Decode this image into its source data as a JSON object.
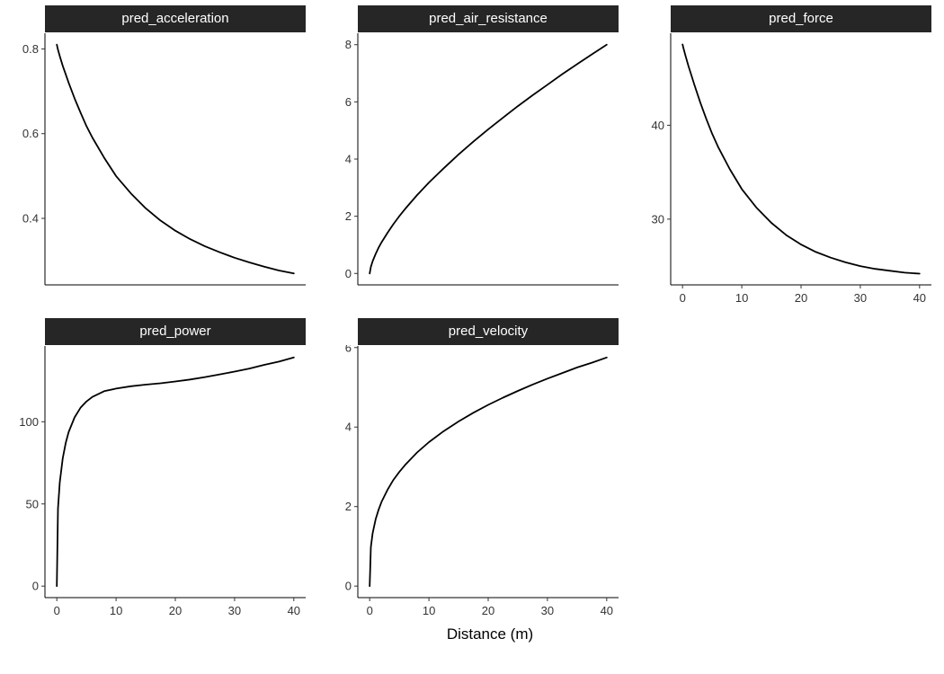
{
  "figure": {
    "strip_fill": "#262626",
    "strip_text_color": "#FFFFFF",
    "line_color": "#000000",
    "axis_text_color": "#333333",
    "background": "#FFFFFF"
  },
  "chart_data": {
    "type": "line",
    "layout": "facet_wrap_3col_free_y",
    "xlabel": "Distance (m)",
    "grid": "off",
    "legend": "none",
    "xlim": [
      -2,
      42
    ],
    "xticks": [
      0,
      10,
      20,
      30,
      40
    ],
    "xtick_labels": [
      "0",
      "10",
      "20",
      "30",
      "40"
    ],
    "x": [
      0,
      0.2,
      0.5,
      1,
      1.5,
      2,
      3,
      4,
      5,
      6,
      8,
      10,
      12.5,
      15,
      17.5,
      20,
      22.5,
      25,
      27.5,
      30,
      32.5,
      35,
      37.5,
      40
    ],
    "facets": [
      {
        "title": "pred_acceleration",
        "row": 1,
        "col": 1,
        "show_x_axis": false,
        "ylim": [
          0.243,
          0.837
        ],
        "yticks": [
          0.4,
          0.6,
          0.8
        ],
        "ytick_labels": [
          "0.4",
          "0.6",
          "0.8"
        ],
        "values": [
          0.81,
          0.798,
          0.783,
          0.76,
          0.74,
          0.72,
          0.683,
          0.65,
          0.618,
          0.591,
          0.543,
          0.5,
          0.459,
          0.424,
          0.395,
          0.371,
          0.351,
          0.334,
          0.32,
          0.307,
          0.296,
          0.286,
          0.277,
          0.27
        ]
      },
      {
        "title": "pred_air_resistance",
        "row": 1,
        "col": 2,
        "show_x_axis": false,
        "ylim": [
          -0.4,
          8.4
        ],
        "yticks": [
          0,
          2,
          4,
          6,
          8
        ],
        "ytick_labels": [
          "0",
          "2",
          "4",
          "6",
          "8"
        ],
        "values": [
          0,
          0.23,
          0.43,
          0.68,
          0.9,
          1.09,
          1.42,
          1.72,
          2.0,
          2.26,
          2.74,
          3.18,
          3.68,
          4.16,
          4.61,
          5.04,
          5.45,
          5.85,
          6.23,
          6.6,
          6.97,
          7.32,
          7.66,
          8.0
        ]
      },
      {
        "title": "pred_force",
        "row": 1,
        "col": 3,
        "show_x_axis": true,
        "ylim": [
          23.0,
          49.8
        ],
        "yticks": [
          30,
          40
        ],
        "ytick_labels": [
          "30",
          "40"
        ],
        "values": [
          48.6,
          48.1,
          47.4,
          46.3,
          45.3,
          44.3,
          42.4,
          40.7,
          39.1,
          37.7,
          35.3,
          33.2,
          31.2,
          29.6,
          28.3,
          27.3,
          26.5,
          25.9,
          25.4,
          25.0,
          24.7,
          24.5,
          24.3,
          24.2
        ]
      },
      {
        "title": "pred_power",
        "row": 2,
        "col": 1,
        "show_x_axis": true,
        "ylim": [
          -7.0,
          146.1
        ],
        "yticks": [
          0,
          50,
          100
        ],
        "ytick_labels": [
          "0",
          "50",
          "100"
        ],
        "values": [
          0,
          47.3,
          63.2,
          77.8,
          87.1,
          93.8,
          102.7,
          108.5,
          112.3,
          115.1,
          118.6,
          120.2,
          121.6,
          122.6,
          123.4,
          124.5,
          125.7,
          127.2,
          128.8,
          130.5,
          132.4,
          134.6,
          136.6,
          139.1
        ]
      },
      {
        "title": "pred_velocity",
        "row": 2,
        "col": 2,
        "show_x_axis": true,
        "ylim": [
          -0.29,
          6.04
        ],
        "yticks": [
          0,
          2,
          4,
          6
        ],
        "ytick_labels": [
          "0",
          "2",
          "4",
          "6"
        ],
        "values": [
          0,
          0.98,
          1.33,
          1.68,
          1.92,
          2.12,
          2.42,
          2.67,
          2.87,
          3.05,
          3.36,
          3.62,
          3.9,
          4.14,
          4.36,
          4.56,
          4.74,
          4.91,
          5.07,
          5.22,
          5.36,
          5.5,
          5.62,
          5.75
        ]
      }
    ]
  }
}
